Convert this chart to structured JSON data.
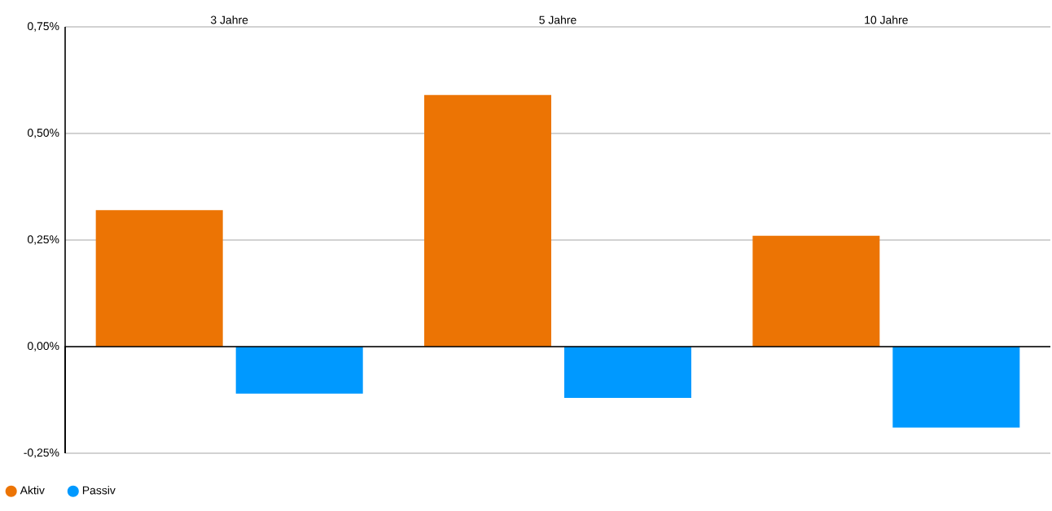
{
  "chart_data": {
    "type": "bar",
    "categories": [
      "3 Jahre",
      "5 Jahre",
      "10 Jahre"
    ],
    "series": [
      {
        "name": "Aktiv",
        "color": "#ec7404",
        "values": [
          0.32,
          0.59,
          0.26
        ]
      },
      {
        "name": "Passiv",
        "color": "#0099ff",
        "values": [
          -0.11,
          -0.12,
          -0.19
        ]
      }
    ],
    "ylim": [
      -0.25,
      0.75
    ],
    "yticks": [
      {
        "value": -0.25,
        "label": "-0,25%"
      },
      {
        "value": 0,
        "label": "0,00%"
      },
      {
        "value": 0.25,
        "label": "0,25%"
      },
      {
        "value": 0.5,
        "label": "0,50%"
      },
      {
        "value": 0.75,
        "label": "0,75%"
      }
    ],
    "grid": "y",
    "legend": "bottom left"
  }
}
